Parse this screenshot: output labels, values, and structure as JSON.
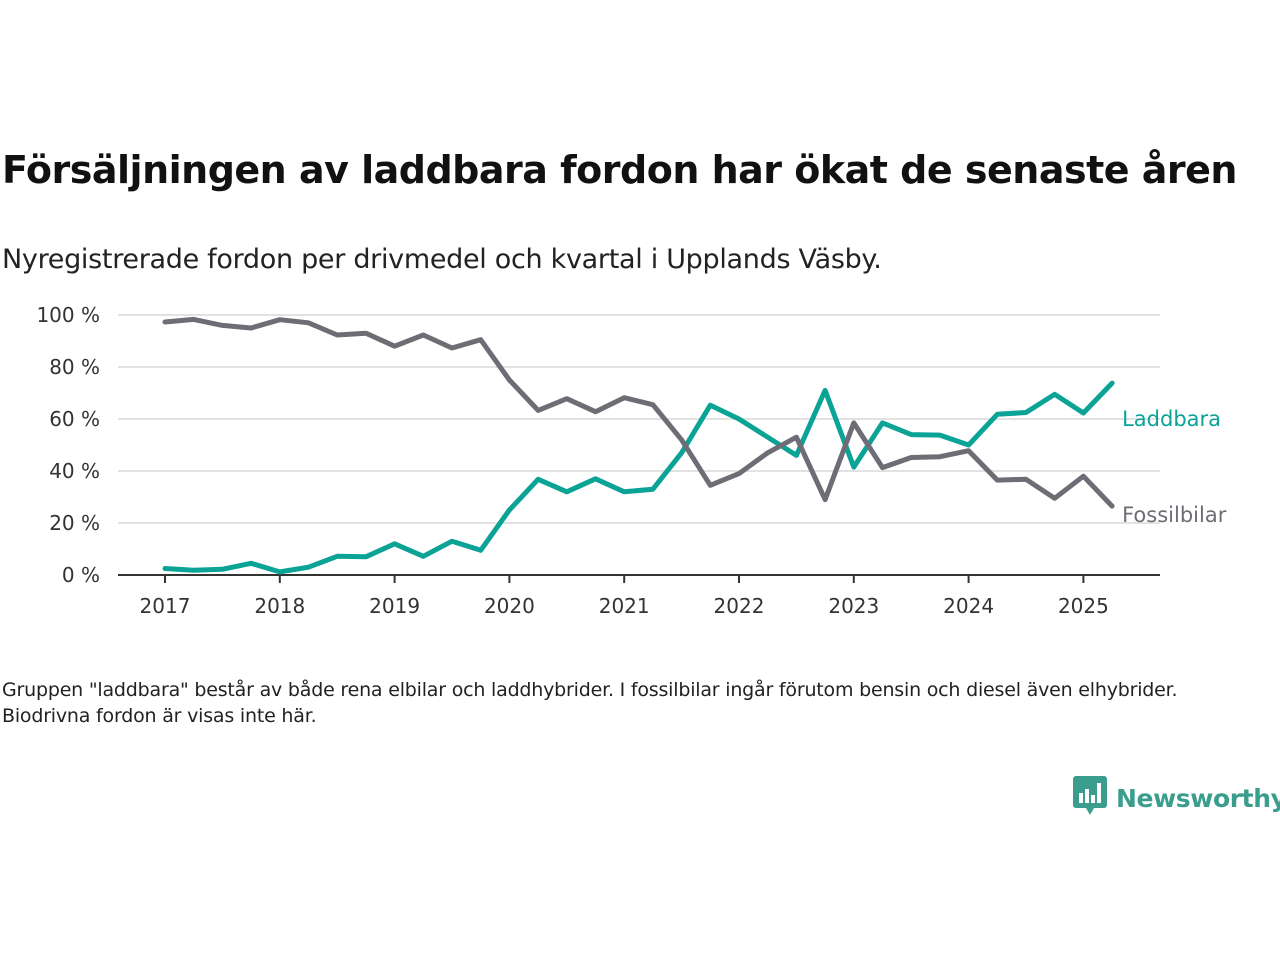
{
  "title": "Försäljningen av laddbara fordon har ökat de senaste åren",
  "subtitle": "Nyregistrerade fordon per drivmedel och kvartal i Upplands Väsby.",
  "footnote": "Gruppen \"laddbara\" består av både rena elbilar och laddhybrider. I fossilbilar ingår förutom bensin och diesel även elhybrider. Biodrivna fordon är visas inte här.",
  "brand": {
    "name": "Newsworthy",
    "icon": "newsworthy-logo-icon",
    "color": "#3a9d8d"
  },
  "chart_data": {
    "type": "line",
    "title": "Försäljningen av laddbara fordon har ökat de senaste åren",
    "subtitle": "Nyregistrerade fordon per drivmedel och kvartal i Upplands Väsby.",
    "xlabel": "",
    "ylabel": "",
    "x_ticks": [
      "2017",
      "2018",
      "2019",
      "2020",
      "2021",
      "2022",
      "2023",
      "2024",
      "2025"
    ],
    "y_ticks": [
      0,
      20,
      40,
      60,
      80,
      100
    ],
    "y_tick_labels": [
      "0 %",
      "20 %",
      "40 %",
      "60 %",
      "80 %",
      "100 %"
    ],
    "ylim": [
      0,
      100
    ],
    "xlim": [
      "2016 Q4",
      "2025 Q3"
    ],
    "grid": true,
    "legend": "inline labels at line ends (right)",
    "x": [
      "2017 Q1",
      "2017 Q2",
      "2017 Q3",
      "2017 Q4",
      "2018 Q1",
      "2018 Q2",
      "2018 Q3",
      "2018 Q4",
      "2019 Q1",
      "2019 Q2",
      "2019 Q3",
      "2019 Q4",
      "2020 Q1",
      "2020 Q2",
      "2020 Q3",
      "2020 Q4",
      "2021 Q1",
      "2021 Q2",
      "2021 Q3",
      "2021 Q4",
      "2022 Q1",
      "2022 Q2",
      "2022 Q3",
      "2022 Q4",
      "2023 Q1",
      "2023 Q2",
      "2023 Q3",
      "2023 Q4",
      "2024 Q1",
      "2024 Q2",
      "2024 Q3",
      "2024 Q4",
      "2025 Q1",
      "2025 Q2"
    ],
    "series": [
      {
        "name": "Laddbara",
        "color": "#0aa396",
        "values": [
          2.5,
          1.8,
          2.2,
          4.5,
          1.2,
          3.0,
          7.2,
          7.0,
          12.0,
          7.2,
          13.0,
          9.5,
          25.0,
          36.8,
          32.0,
          37.0,
          32.0,
          33.0,
          47.0,
          65.3,
          60.0,
          53.0,
          46.0,
          71.0,
          41.5,
          58.5,
          54.0,
          53.8,
          50.0,
          61.8,
          62.5,
          69.5,
          62.3,
          73.8
        ]
      },
      {
        "name": "Fossilbilar",
        "color": "#6e6d75",
        "values": [
          97.3,
          98.3,
          96.0,
          95.0,
          98.2,
          97.0,
          92.3,
          93.0,
          88.0,
          92.3,
          87.3,
          90.5,
          75.0,
          63.3,
          67.8,
          62.8,
          68.2,
          65.5,
          52.0,
          34.5,
          39.0,
          47.0,
          53.0,
          29.0,
          58.5,
          41.3,
          45.2,
          45.5,
          47.8,
          36.5,
          36.8,
          29.5,
          38.0,
          26.5
        ]
      }
    ]
  }
}
